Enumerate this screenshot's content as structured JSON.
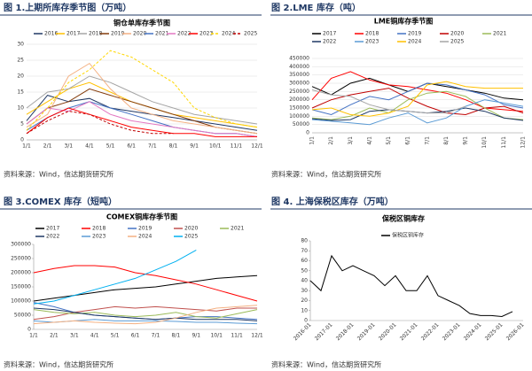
{
  "captions": [
    "图 1.上期所库存季节图（万吨）",
    "图 2.LME 库存（吨）",
    "图 3.COMEX 库存（短吨）",
    "图 4. 上海保税区库存（万吨）"
  ],
  "sources": [
    "资料来源：Wind，信达期货研究所",
    "资料来源：Wind，信达期货研究所",
    "资料来源：Wind，信达期货研究所",
    "资料来源：Wind，信达期货研究所"
  ],
  "chart_data": [
    {
      "type": "line",
      "title": "铜仓单库存季节图",
      "categories": [
        "1/1",
        "2/1",
        "3/1",
        "4/1",
        "5/1",
        "6/1",
        "7/1",
        "8/1",
        "9/1",
        "10/1",
        "11/1",
        "12/1"
      ],
      "ylim": [
        0,
        30
      ],
      "yticks": [
        0,
        5,
        10,
        15,
        20,
        25,
        30
      ],
      "grid": true,
      "series": [
        {
          "name": "2016",
          "color": "#203864",
          "values": [
            6,
            14,
            12,
            13,
            10,
            9,
            8,
            7,
            6,
            5,
            4,
            3
          ]
        },
        {
          "name": "2017",
          "color": "#ffc000",
          "values": [
            8,
            12,
            16,
            18,
            15,
            12,
            10,
            8,
            7,
            6,
            5,
            4
          ]
        },
        {
          "name": "2018",
          "color": "#a5a5a5",
          "values": [
            10,
            15,
            16,
            20,
            18,
            15,
            12,
            10,
            8,
            7,
            6,
            5
          ]
        },
        {
          "name": "2019",
          "color": "#843c0c",
          "values": [
            5,
            10,
            12,
            16,
            14,
            12,
            10,
            8,
            6,
            4,
            3,
            2
          ]
        },
        {
          "name": "2020",
          "color": "#f4b183",
          "values": [
            4,
            8,
            20,
            24,
            16,
            10,
            8,
            6,
            5,
            4,
            3,
            2
          ]
        },
        {
          "name": "2021",
          "color": "#4472c4",
          "values": [
            3,
            7,
            10,
            12,
            10,
            8,
            6,
            4,
            3,
            2,
            2,
            1
          ]
        },
        {
          "name": "2022",
          "color": "#e377c2",
          "values": [
            5,
            10,
            9,
            12,
            8,
            6,
            5,
            4,
            3,
            2,
            2,
            1
          ]
        },
        {
          "name": "2023",
          "color": "#ff0000",
          "values": [
            2,
            7,
            10,
            8,
            6,
            4,
            3,
            2,
            2,
            1,
            1,
            1
          ]
        },
        {
          "name": "2024",
          "color": "#ffd700",
          "dashed": true,
          "values": [
            3,
            10,
            18,
            22,
            28,
            26,
            22,
            18,
            10,
            7,
            5,
            4
          ]
        },
        {
          "name": "2025",
          "color": "#c00000",
          "dashed": true,
          "values": [
            2,
            6,
            9,
            8,
            5,
            3,
            2,
            2,
            null,
            null,
            null,
            null
          ]
        }
      ]
    },
    {
      "type": "line",
      "title": "LME铜库存季节图",
      "categories": [
        "1/1",
        "2/1",
        "3/1",
        "4/1",
        "5/1",
        "6/1",
        "7/1",
        "8/1",
        "9/1",
        "10/1",
        "11/1",
        "12/1"
      ],
      "ylim": [
        0,
        450000
      ],
      "yticks": [
        0,
        50000,
        100000,
        150000,
        200000,
        250000,
        300000,
        350000,
        400000,
        450000
      ],
      "grid": true,
      "series": [
        {
          "name": "2017",
          "color": "#000000",
          "values": [
            280000,
            230000,
            300000,
            330000,
            290000,
            250000,
            300000,
            280000,
            260000,
            240000,
            210000,
            200000
          ]
        },
        {
          "name": "2018",
          "color": "#ff0000",
          "values": [
            200000,
            330000,
            370000,
            320000,
            290000,
            280000,
            260000,
            240000,
            200000,
            150000,
            140000,
            130000
          ]
        },
        {
          "name": "2019",
          "color": "#4472c4",
          "values": [
            140000,
            110000,
            170000,
            220000,
            200000,
            250000,
            300000,
            290000,
            260000,
            230000,
            170000,
            150000
          ]
        },
        {
          "name": "2020",
          "color": "#c00000",
          "values": [
            150000,
            200000,
            230000,
            250000,
            270000,
            210000,
            160000,
            120000,
            110000,
            150000,
            160000,
            120000
          ]
        },
        {
          "name": "2021",
          "color": "#9bbb59",
          "values": [
            90000,
            80000,
            100000,
            150000,
            120000,
            200000,
            240000,
            250000,
            220000,
            150000,
            90000,
            80000
          ]
        },
        {
          "name": "2022",
          "color": "#1f3864",
          "values": [
            85000,
            75000,
            80000,
            130000,
            140000,
            130000,
            120000,
            130000,
            150000,
            130000,
            90000,
            75000
          ]
        },
        {
          "name": "2023",
          "color": "#5b9bd5",
          "values": [
            80000,
            70000,
            60000,
            50000,
            90000,
            120000,
            60000,
            90000,
            160000,
            200000,
            180000,
            160000
          ]
        },
        {
          "name": "2024",
          "color": "#ffc000",
          "values": [
            140000,
            150000,
            110000,
            100000,
            120000,
            160000,
            290000,
            310000,
            280000,
            270000,
            270000,
            270000
          ]
        },
        {
          "name": "2025",
          "color": "#a5a5a5",
          "values": [
            260000,
            230000,
            220000,
            170000,
            140000,
            130000,
            120000,
            120000,
            160000,
            null,
            null,
            null
          ]
        }
      ]
    },
    {
      "type": "line",
      "title": "COMEX铜库存季节图",
      "categories": [
        "1/1",
        "2/1",
        "3/1",
        "4/1",
        "5/1",
        "6/1",
        "7/1",
        "8/1",
        "9/1",
        "10/1",
        "11/1",
        "12/1"
      ],
      "ylim": [
        0,
        300000
      ],
      "yticks": [
        0,
        50000,
        100000,
        150000,
        200000,
        250000,
        300000
      ],
      "grid": false,
      "series": [
        {
          "name": "2017",
          "color": "#000000",
          "values": [
            100000,
            110000,
            120000,
            130000,
            140000,
            145000,
            150000,
            160000,
            170000,
            180000,
            185000,
            190000
          ]
        },
        {
          "name": "2018",
          "color": "#ff0000",
          "values": [
            200000,
            215000,
            225000,
            225000,
            220000,
            200000,
            190000,
            175000,
            160000,
            140000,
            120000,
            100000
          ]
        },
        {
          "name": "2019",
          "color": "#4472c4",
          "values": [
            95000,
            80000,
            60000,
            50000,
            45000,
            40000,
            35000,
            40000,
            45000,
            45000,
            40000,
            35000
          ]
        },
        {
          "name": "2020",
          "color": "#c0504d",
          "values": [
            35000,
            45000,
            60000,
            70000,
            80000,
            75000,
            80000,
            75000,
            70000,
            65000,
            75000,
            75000
          ]
        },
        {
          "name": "2021",
          "color": "#9bbb59",
          "values": [
            70000,
            60000,
            55000,
            60000,
            50000,
            45000,
            50000,
            60000,
            45000,
            40000,
            55000,
            70000
          ]
        },
        {
          "name": "2022",
          "color": "#1f3864",
          "values": [
            75000,
            70000,
            60000,
            50000,
            45000,
            40000,
            35000,
            40000,
            35000,
            35000,
            35000,
            30000
          ]
        },
        {
          "name": "2023",
          "color": "#5b9bd5",
          "values": [
            30000,
            25000,
            30000,
            35000,
            30000,
            30000,
            30000,
            28000,
            25000,
            25000,
            22000,
            20000
          ]
        },
        {
          "name": "2024",
          "color": "#f4b183",
          "values": [
            20000,
            25000,
            30000,
            25000,
            22000,
            20000,
            25000,
            40000,
            60000,
            75000,
            80000,
            85000
          ]
        },
        {
          "name": "2025",
          "color": "#00b0f0",
          "values": [
            90000,
            100000,
            120000,
            140000,
            160000,
            180000,
            210000,
            240000,
            280000,
            null,
            null,
            null
          ]
        }
      ]
    },
    {
      "type": "line",
      "title": "保税区铜库存",
      "categories": [
        "2016-01",
        null,
        "2017-01",
        null,
        "2018-01",
        null,
        "2019-01",
        null,
        "2020-01",
        null,
        "2021-01",
        null,
        "2022-01",
        null,
        "2023-01",
        null,
        "2024-01",
        null,
        "2025-01",
        null,
        "2026-01"
      ],
      "ylim": [
        0,
        80
      ],
      "yticks": [
        0,
        10,
        20,
        30,
        40,
        50,
        60,
        70,
        80
      ],
      "grid": false,
      "series": [
        {
          "name": "保税区铜库存",
          "color": "#000000",
          "values": [
            40,
            30,
            65,
            50,
            55,
            50,
            45,
            35,
            45,
            30,
            30,
            45,
            25,
            20,
            15,
            7,
            5,
            5,
            4,
            9,
            null
          ]
        }
      ]
    }
  ]
}
